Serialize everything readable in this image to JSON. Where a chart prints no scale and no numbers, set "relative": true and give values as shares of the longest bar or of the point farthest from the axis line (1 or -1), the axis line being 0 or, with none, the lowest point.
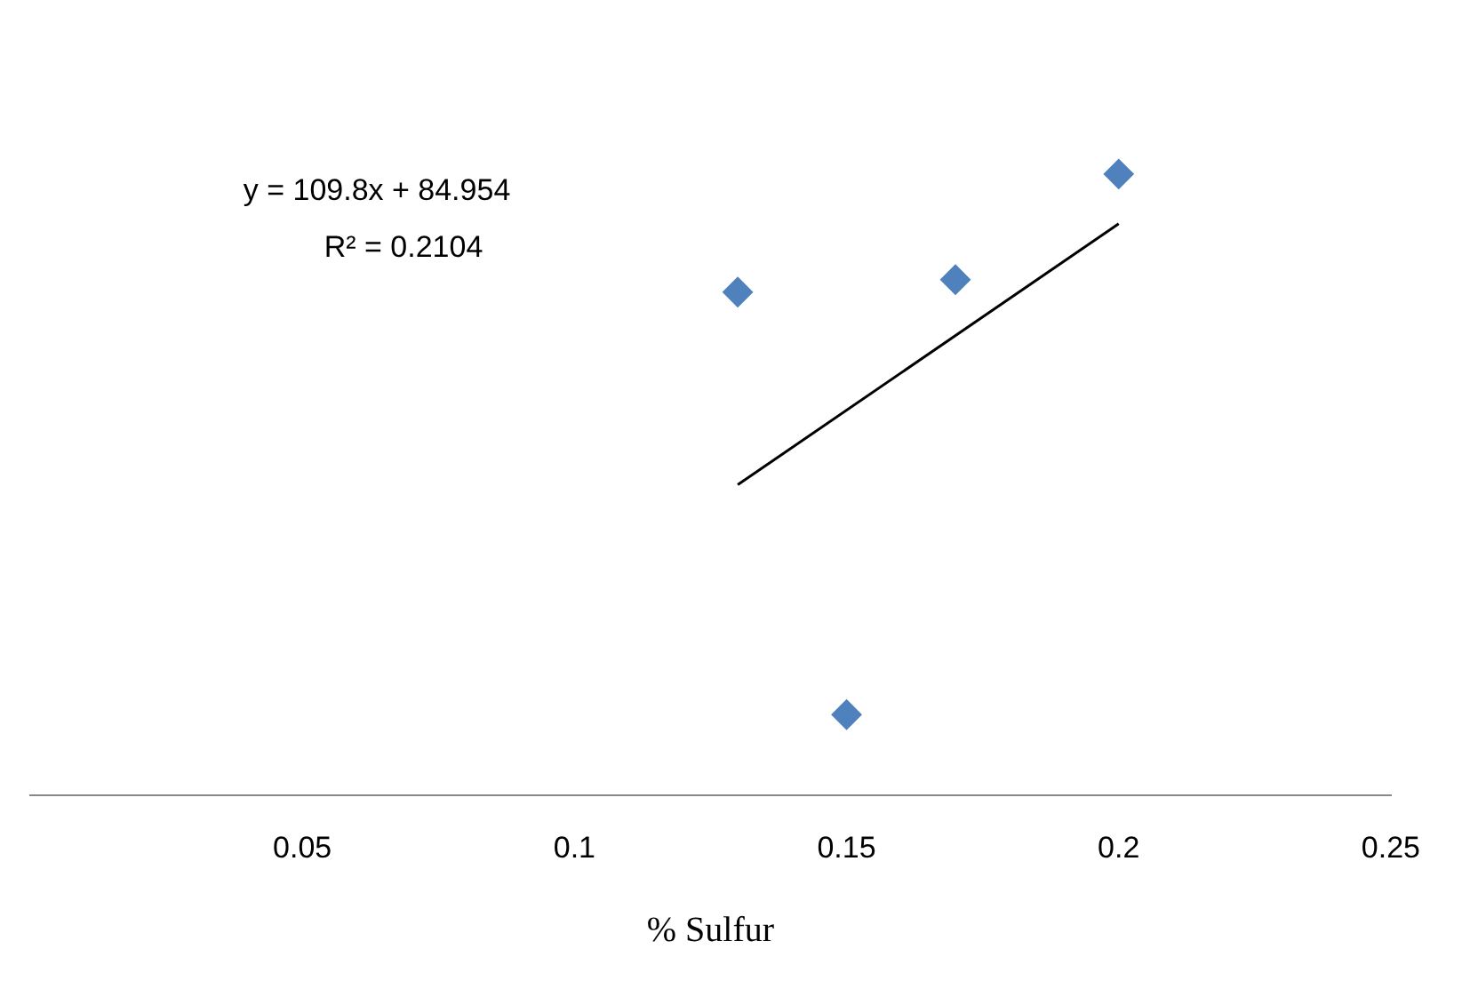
{
  "chart_data": {
    "type": "scatter",
    "xlabel": "% Sulfur",
    "relative": true,
    "x": [
      0.13,
      0.15,
      0.17,
      0.2
    ],
    "series": [
      {
        "color": "#4f81bd",
        "marker": "diamond",
        "values": [
          0.81,
          0.13,
          0.83,
          1
        ]
      },
      {
        "type": "line",
        "color": "#000000",
        "marker": "none",
        "x": [
          0.13,
          0.2
        ],
        "values": [
          0.5,
          0.92
        ]
      }
    ],
    "annotations": [
      "y = 109.8x + 84.954",
      "R² = 0.2104"
    ],
    "xlim": [
      0,
      0.25
    ],
    "xticks": [
      0.05,
      0.1,
      0.15,
      0.2,
      0.25
    ],
    "grid": false,
    "legend": false
  }
}
